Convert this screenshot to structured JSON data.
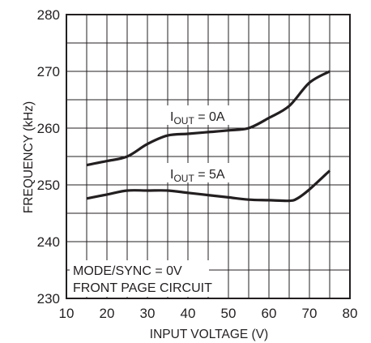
{
  "chart_data": {
    "type": "line",
    "title": "",
    "xlabel": "INPUT VOLTAGE (V)",
    "ylabel": "FREQUENCY (kHz)",
    "xlim": [
      10,
      80
    ],
    "ylim": [
      230,
      280
    ],
    "xticks": [
      10,
      20,
      30,
      40,
      50,
      60,
      70,
      80
    ],
    "yticks": [
      230,
      240,
      250,
      260,
      270,
      280
    ],
    "x_minor_grid_step": 5,
    "y_minor_grid_step": 5,
    "grid": true,
    "series": [
      {
        "name": "IOUT = 0A",
        "label_main": "I",
        "label_sub": "OUT",
        "label_rest": " = 0A",
        "x": [
          15,
          20,
          25,
          30,
          35,
          40,
          45,
          50,
          55,
          60,
          65,
          70,
          75
        ],
        "y": [
          253.5,
          254.2,
          255.0,
          257.2,
          258.7,
          259.0,
          259.3,
          259.6,
          260.0,
          261.8,
          263.9,
          268.0,
          270.0
        ]
      },
      {
        "name": "IOUT = 5A",
        "label_main": "I",
        "label_sub": "OUT",
        "label_rest": " = 5A",
        "x": [
          15,
          20,
          25,
          30,
          35,
          40,
          45,
          50,
          55,
          60,
          65,
          67,
          70,
          75
        ],
        "y": [
          247.6,
          248.3,
          249.0,
          249.0,
          249.0,
          248.6,
          248.2,
          247.8,
          247.4,
          247.3,
          247.2,
          247.6,
          249.2,
          252.5
        ]
      }
    ],
    "annotations": [
      "MODE/SYNC = 0V",
      "FRONT PAGE CIRCUIT"
    ],
    "colors": {
      "line": "#231f20",
      "grid": "#231f20",
      "background": "#ffffff"
    }
  }
}
